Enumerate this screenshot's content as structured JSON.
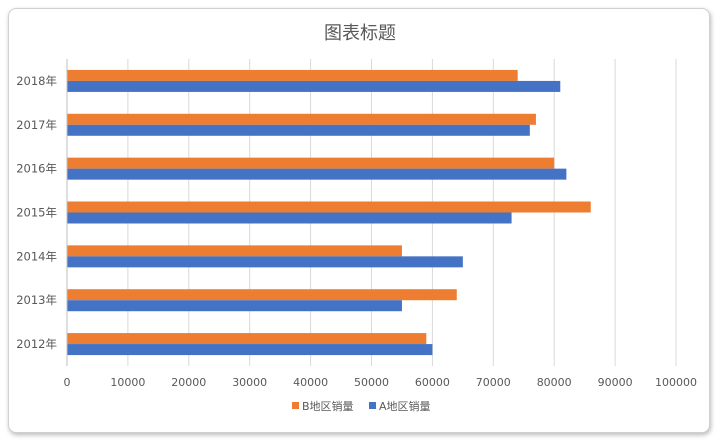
{
  "chart_data": {
    "type": "bar",
    "orientation": "horizontal",
    "title": "图表标题",
    "categories": [
      "2012年",
      "2013年",
      "2014年",
      "2015年",
      "2016年",
      "2017年",
      "2018年"
    ],
    "series": [
      {
        "name": "B地区销量",
        "color": "#ED7D31",
        "values": [
          59000,
          64000,
          55000,
          86000,
          80000,
          77000,
          74000
        ]
      },
      {
        "name": "A地区销量",
        "color": "#4472C4",
        "values": [
          60000,
          55000,
          65000,
          73000,
          82000,
          76000,
          81000
        ]
      }
    ],
    "xlim": [
      0,
      100000
    ],
    "xticks": [
      "0",
      "10000",
      "20000",
      "30000",
      "40000",
      "50000",
      "60000",
      "70000",
      "80000",
      "90000",
      "100000"
    ],
    "grid": true,
    "legend_position": "bottom"
  }
}
